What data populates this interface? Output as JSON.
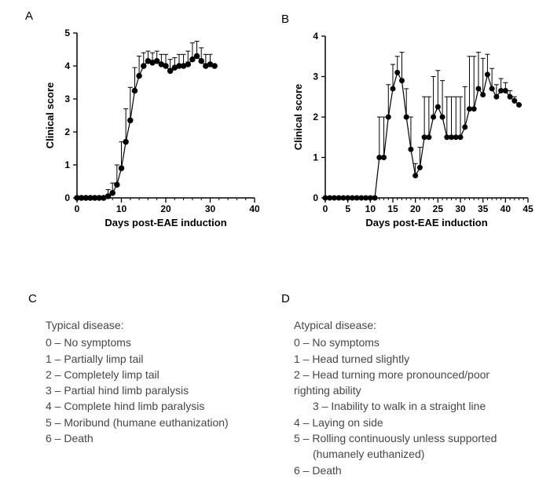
{
  "colors": {
    "bg": "#ffffff",
    "ink": "#000000",
    "text_body": "#464646",
    "marker_fill": "#000000",
    "line": "#000000",
    "error_bar": "#000000"
  },
  "panel_labels": {
    "A": "A",
    "B": "B",
    "C": "C",
    "D": "D"
  },
  "chartA": {
    "type": "line",
    "xlabel": "Days post-EAE induction",
    "ylabel": "Clinical score",
    "xlim": [
      0,
      40
    ],
    "ylim": [
      0,
      5
    ],
    "xticks": [
      0,
      10,
      20,
      30,
      40
    ],
    "yticks": [
      0,
      1,
      2,
      3,
      4,
      5
    ],
    "minor_xtick_step": 2,
    "marker": "circle",
    "marker_size": 4.5,
    "line_width": 1.2,
    "series": [
      {
        "x": 0,
        "y": 0,
        "e": 0
      },
      {
        "x": 1,
        "y": 0,
        "e": 0
      },
      {
        "x": 2,
        "y": 0,
        "e": 0
      },
      {
        "x": 3,
        "y": 0,
        "e": 0
      },
      {
        "x": 4,
        "y": 0,
        "e": 0
      },
      {
        "x": 5,
        "y": 0,
        "e": 0
      },
      {
        "x": 6,
        "y": 0,
        "e": 0
      },
      {
        "x": 7,
        "y": 0.05,
        "e": 0.2
      },
      {
        "x": 8,
        "y": 0.15,
        "e": 0.3
      },
      {
        "x": 9,
        "y": 0.4,
        "e": 0.6
      },
      {
        "x": 10,
        "y": 0.9,
        "e": 0.8
      },
      {
        "x": 11,
        "y": 1.7,
        "e": 1.0
      },
      {
        "x": 12,
        "y": 2.35,
        "e": 1.0
      },
      {
        "x": 13,
        "y": 3.25,
        "e": 0.7
      },
      {
        "x": 14,
        "y": 3.7,
        "e": 0.6
      },
      {
        "x": 15,
        "y": 4.0,
        "e": 0.4
      },
      {
        "x": 16,
        "y": 4.15,
        "e": 0.3
      },
      {
        "x": 17,
        "y": 4.1,
        "e": 0.3
      },
      {
        "x": 18,
        "y": 4.15,
        "e": 0.3
      },
      {
        "x": 19,
        "y": 4.05,
        "e": 0.3
      },
      {
        "x": 20,
        "y": 4.0,
        "e": 0.35
      },
      {
        "x": 21,
        "y": 3.85,
        "e": 0.35
      },
      {
        "x": 22,
        "y": 3.95,
        "e": 0.3
      },
      {
        "x": 23,
        "y": 4.0,
        "e": 0.35
      },
      {
        "x": 24,
        "y": 4.0,
        "e": 0.35
      },
      {
        "x": 25,
        "y": 4.05,
        "e": 0.4
      },
      {
        "x": 26,
        "y": 4.2,
        "e": 0.5
      },
      {
        "x": 27,
        "y": 4.3,
        "e": 0.45
      },
      {
        "x": 28,
        "y": 4.15,
        "e": 0.4
      },
      {
        "x": 29,
        "y": 4.0,
        "e": 0.35
      },
      {
        "x": 30,
        "y": 4.05,
        "e": 0.3
      },
      {
        "x": 31,
        "y": 4.0,
        "e": 0
      }
    ]
  },
  "chartB": {
    "type": "line",
    "xlabel": "Days post-EAE induction",
    "ylabel": "Clinical score",
    "xlim": [
      0,
      45
    ],
    "ylim": [
      0,
      4
    ],
    "xticks": [
      0,
      5,
      10,
      15,
      20,
      25,
      30,
      35,
      40,
      45
    ],
    "yticks": [
      0,
      1,
      2,
      3,
      4
    ],
    "minor_xtick_step": 1,
    "marker": "circle",
    "marker_size": 4,
    "line_width": 1.2,
    "series": [
      {
        "x": 0,
        "y": 0,
        "e": 0
      },
      {
        "x": 1,
        "y": 0,
        "e": 0
      },
      {
        "x": 2,
        "y": 0,
        "e": 0
      },
      {
        "x": 3,
        "y": 0,
        "e": 0
      },
      {
        "x": 4,
        "y": 0,
        "e": 0
      },
      {
        "x": 5,
        "y": 0,
        "e": 0
      },
      {
        "x": 6,
        "y": 0,
        "e": 0
      },
      {
        "x": 7,
        "y": 0,
        "e": 0
      },
      {
        "x": 8,
        "y": 0,
        "e": 0
      },
      {
        "x": 9,
        "y": 0,
        "e": 0
      },
      {
        "x": 10,
        "y": 0,
        "e": 0
      },
      {
        "x": 11,
        "y": 0,
        "e": 0
      },
      {
        "x": 12,
        "y": 1.0,
        "e": 1.0
      },
      {
        "x": 13,
        "y": 1.0,
        "e": 1.0
      },
      {
        "x": 14,
        "y": 2.0,
        "e": 0.8
      },
      {
        "x": 15,
        "y": 2.7,
        "e": 0.6
      },
      {
        "x": 16,
        "y": 3.1,
        "e": 0.4
      },
      {
        "x": 17,
        "y": 2.9,
        "e": 0.7
      },
      {
        "x": 18,
        "y": 2.0,
        "e": 0.7
      },
      {
        "x": 19,
        "y": 1.2,
        "e": 0.8
      },
      {
        "x": 20,
        "y": 0.55,
        "e": 0.3
      },
      {
        "x": 21,
        "y": 0.75,
        "e": 0.5
      },
      {
        "x": 22,
        "y": 1.5,
        "e": 1.0
      },
      {
        "x": 23,
        "y": 1.5,
        "e": 1.0
      },
      {
        "x": 24,
        "y": 2.0,
        "e": 1.0
      },
      {
        "x": 25,
        "y": 2.25,
        "e": 0.9
      },
      {
        "x": 26,
        "y": 2.0,
        "e": 0.9
      },
      {
        "x": 27,
        "y": 1.5,
        "e": 1.0
      },
      {
        "x": 28,
        "y": 1.5,
        "e": 1.0
      },
      {
        "x": 29,
        "y": 1.5,
        "e": 1.0
      },
      {
        "x": 30,
        "y": 1.5,
        "e": 1.0
      },
      {
        "x": 31,
        "y": 1.75,
        "e": 1.0
      },
      {
        "x": 32,
        "y": 2.2,
        "e": 1.3
      },
      {
        "x": 33,
        "y": 2.2,
        "e": 1.3
      },
      {
        "x": 34,
        "y": 2.7,
        "e": 0.9
      },
      {
        "x": 35,
        "y": 2.55,
        "e": 0.9
      },
      {
        "x": 36,
        "y": 3.05,
        "e": 0.5
      },
      {
        "x": 37,
        "y": 2.7,
        "e": 0.5
      },
      {
        "x": 38,
        "y": 2.5,
        "e": 0.3
      },
      {
        "x": 39,
        "y": 2.65,
        "e": 0.3
      },
      {
        "x": 40,
        "y": 2.65,
        "e": 0.2
      },
      {
        "x": 41,
        "y": 2.5,
        "e": 0.15
      },
      {
        "x": 42,
        "y": 2.4,
        "e": 0.1
      },
      {
        "x": 43,
        "y": 2.3,
        "e": 0
      }
    ]
  },
  "legendC": {
    "title": "Typical disease:",
    "items": [
      "0 – No symptoms",
      "1 – Partially limp tail",
      "2 – Completely limp tail",
      "3 – Partial hind limb paralysis",
      "4 – Complete hind limb paralysis",
      "5 – Moribund (humane euthanization)",
      "6 – Death"
    ]
  },
  "legendD": {
    "title": "Atypical disease:",
    "items": [
      "0 – No symptoms",
      "1 – Head turned slightly",
      "2 – Head turning more pronounced/poor",
      "     righting ability",
      "3 – Inability to walk in a straight line",
      "4 – Laying on side",
      "5 – Rolling continuously unless supported",
      "     (humanely euthanized)",
      "6 – Death"
    ],
    "indent_indices": [
      4,
      7
    ]
  }
}
